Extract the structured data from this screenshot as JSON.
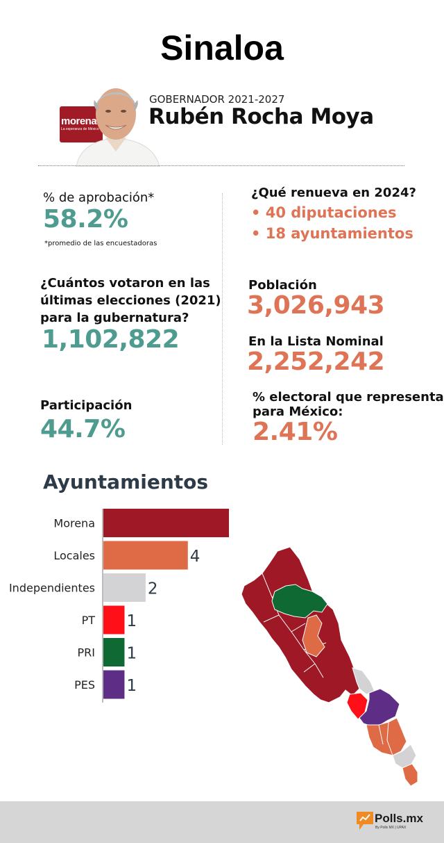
{
  "title": "Sinaloa",
  "party_logo": {
    "name": "morena",
    "tagline": "La esperanza de México"
  },
  "governor": {
    "label": "GOBERNADOR 2021-2027",
    "name": "Rubén Rocha Moya"
  },
  "approval": {
    "label": "% de aprobación*",
    "value": "58.2%",
    "footnote": "*promedio de las encuestadoras"
  },
  "renews": {
    "label": "¿Qué renueva en 2024?",
    "items": [
      "• 40 diputaciones",
      "• 18 ayuntamientos"
    ]
  },
  "votes": {
    "label_lines": [
      "¿Cuántos votaron en las",
      "últimas elecciones (2021)",
      "para la gubernatura?"
    ],
    "value": "1,102,822"
  },
  "population": {
    "label": "Población",
    "value": "3,026,943"
  },
  "nominal": {
    "label": "En la Lista Nominal",
    "value": "2,252,242"
  },
  "participation": {
    "label": "Participación",
    "value": "44.7%"
  },
  "electoral_share": {
    "label_lines": [
      "% electoral que representa",
      "para México:"
    ],
    "value": "2.41%"
  },
  "chart_data": {
    "type": "bar",
    "orientation": "horizontal",
    "title": "Ayuntamientos",
    "categories": [
      "Morena",
      "Locales",
      "Independientes",
      "PT",
      "PRI",
      "PES"
    ],
    "values": [
      9,
      4,
      2,
      1,
      1,
      1
    ],
    "colors": [
      "#9e1826",
      "#de6a46",
      "#d3d3d5",
      "#ff1018",
      "#0e6a32",
      "#5e2d86"
    ],
    "xlim": [
      0,
      9
    ],
    "grid": false,
    "data_labels": true
  },
  "map_colors": {
    "morena": "#9e1826",
    "locales": "#de6a46",
    "independientes": "#d3d3d5",
    "pt": "#ff1018",
    "pri": "#0e6a32",
    "pes": "#5e2d86"
  },
  "footer": {
    "brand": "Polls.mx",
    "sub": "By Polls MX  |  UPAX",
    "accent": "#f08a24"
  }
}
